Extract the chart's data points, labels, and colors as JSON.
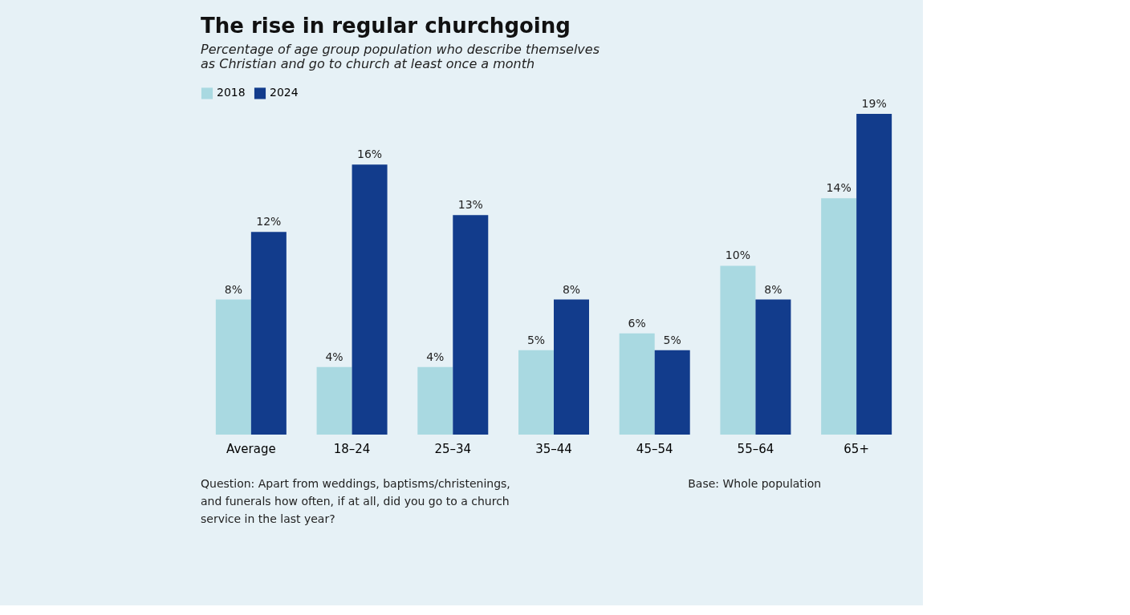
{
  "chart_data": {
    "type": "bar",
    "title": "The rise in regular churchgoing",
    "subtitle": "Percentage of age group population who describe themselves\nas Christian and go to church at least once a month",
    "categories": [
      "Average",
      "18–24",
      "25–34",
      "35–44",
      "45–54",
      "55–64",
      "65+"
    ],
    "series": [
      {
        "name": "2018",
        "color": "#a9d9e1",
        "values": [
          8,
          4,
          4,
          5,
          6,
          10,
          14
        ],
        "value_labels": [
          "8%",
          "4%",
          "4%",
          "5%",
          "6%",
          "10%",
          "14%"
        ]
      },
      {
        "name": "2024",
        "color": "#123c8c",
        "values": [
          12,
          16,
          13,
          8,
          5,
          8,
          19
        ],
        "value_labels": [
          "12%",
          "16%",
          "13%",
          "8%",
          "5%",
          "8%",
          "19%"
        ]
      }
    ],
    "legend": "top",
    "grid": false,
    "annotations": [
      "Question: Apart from weddings, baptisms/christenings,\nand funerals how often, if at all, did you go to a church\nservice in the last year?",
      "Base: Whole population"
    ]
  }
}
